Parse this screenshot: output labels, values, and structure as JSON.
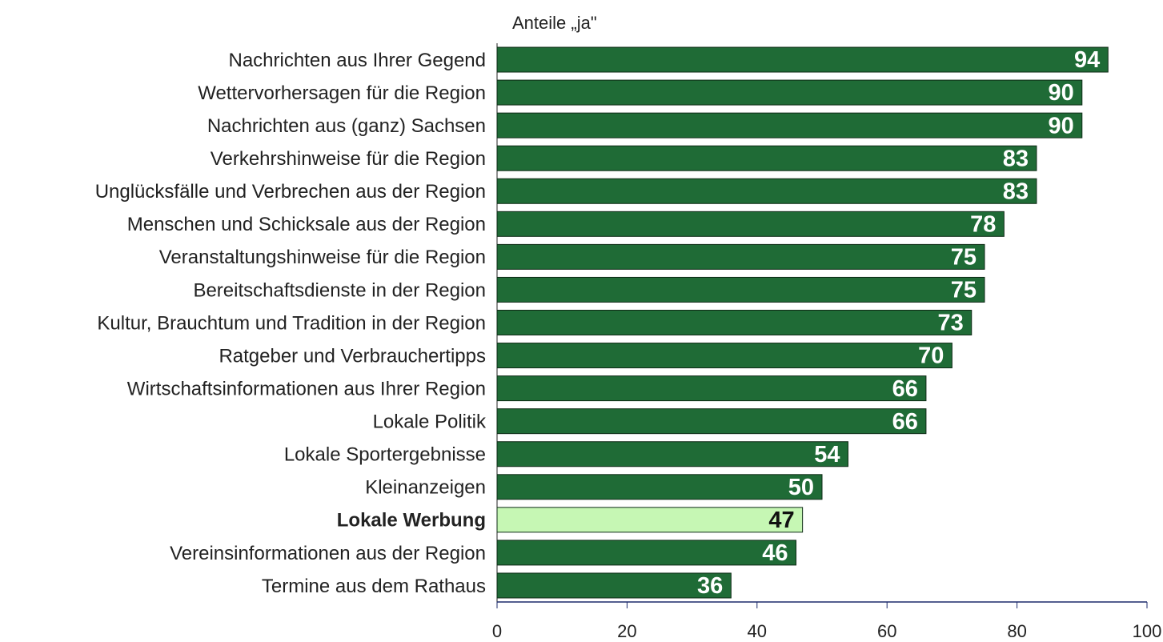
{
  "chart_data": {
    "type": "bar",
    "orientation": "horizontal",
    "title": "Anteile „ja\"",
    "categories": [
      "Nachrichten aus Ihrer Gegend",
      "Wettervorhersagen für die Region",
      "Nachrichten aus (ganz) Sachsen",
      "Verkehrshinweise für die Region",
      "Unglücksfälle und Verbrechen aus der Region",
      "Menschen und Schicksale aus der Region",
      "Veranstaltungshinweise für die Region",
      "Bereitschaftsdienste in der Region",
      "Kultur, Brauchtum und Tradition in der Region",
      "Ratgeber und Verbrauchertipps",
      "Wirtschaftsinformationen aus Ihrer Region",
      "Lokale Politik",
      "Lokale Sportergebnisse",
      "Kleinanzeigen",
      "Lokale Werbung",
      "Vereinsinformationen aus der Region",
      "Termine aus dem Rathaus"
    ],
    "values": [
      94,
      90,
      90,
      83,
      83,
      78,
      75,
      75,
      73,
      70,
      66,
      66,
      54,
      50,
      47,
      46,
      36
    ],
    "color": "#1f6b36",
    "highlight_index": 14,
    "highlight_color": "#c6f7b4",
    "xlim": [
      0,
      100
    ],
    "xticks": [
      0,
      20,
      40,
      60,
      80,
      100
    ]
  }
}
